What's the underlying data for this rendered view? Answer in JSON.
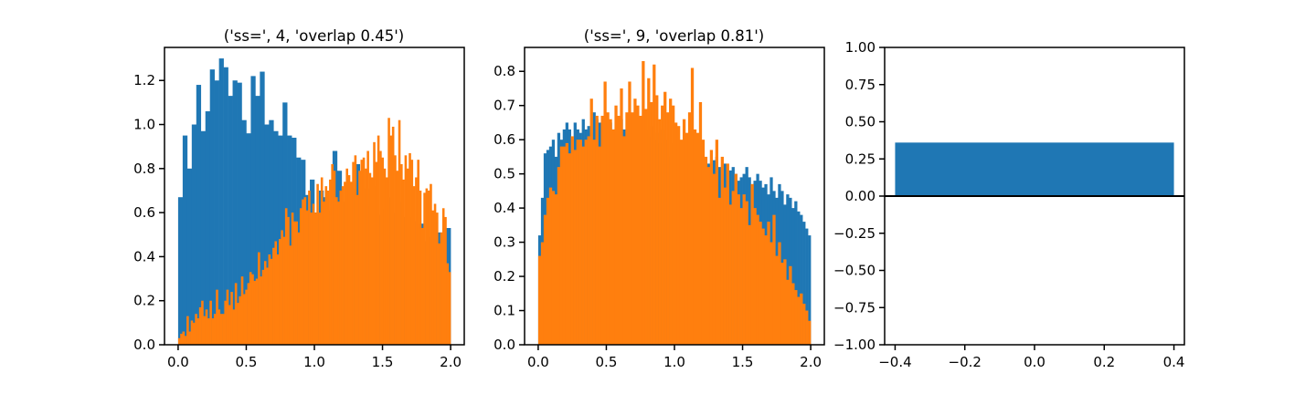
{
  "colors": {
    "blue": "#1f77b4",
    "orange": "#ff7f0e"
  },
  "chart_data": [
    {
      "type": "histogram",
      "title": "('ss=', 4, 'overlap 0.45')",
      "xlim": [
        -0.1,
        2.1
      ],
      "ylim": [
        0,
        1.35
      ],
      "xticks": [
        "0.0",
        "0.5",
        "1.0",
        "1.5",
        "2.0"
      ],
      "xtick_values": [
        0,
        0.5,
        1.0,
        1.5,
        2.0
      ],
      "yticks": [
        "0.0",
        "0.2",
        "0.4",
        "0.6",
        "0.8",
        "1.0",
        "1.2"
      ],
      "ytick_values": [
        0,
        0.2,
        0.4,
        0.6,
        0.8,
        1.0,
        1.2
      ],
      "bin_range": [
        0,
        2
      ],
      "series": [
        {
          "color": "blue",
          "values": [
            0.67,
            0.95,
            0.8,
            1.0,
            1.18,
            0.97,
            1.06,
            1.25,
            1.2,
            1.3,
            1.26,
            1.13,
            1.2,
            1.19,
            1.02,
            0.96,
            1.22,
            1.13,
            1.24,
            1.0,
            1.02,
            0.97,
            0.95,
            1.1,
            0.95,
            0.94,
            0.85,
            0.84,
            0.68,
            0.75,
            0.6,
            0.7,
            0.67,
            0.61,
            0.88,
            0.79,
            0.65,
            0.69,
            0.71,
            0.82,
            0.57,
            0.71,
            0.63,
            0.72,
            0.59,
            0.62,
            0.67,
            0.6,
            0.65,
            0.58,
            0.63,
            0.58,
            0.56,
            0.55,
            0.47,
            0.49,
            0.56,
            0.51,
            0.5,
            0.53
          ]
        },
        {
          "color": "orange",
          "values": [
            0.03,
            0.05,
            0.06,
            0.04,
            0.13,
            0.06,
            0.11,
            0.1,
            0.14,
            0.12,
            0.17,
            0.2,
            0.13,
            0.16,
            0.12,
            0.2,
            0.12,
            0.14,
            0.25,
            0.16,
            0.14,
            0.14,
            0.2,
            0.25,
            0.18,
            0.24,
            0.16,
            0.28,
            0.19,
            0.22,
            0.31,
            0.23,
            0.25,
            0.28,
            0.33,
            0.32,
            0.29,
            0.3,
            0.42,
            0.31,
            0.34,
            0.38,
            0.35,
            0.41,
            0.39,
            0.44,
            0.47,
            0.41,
            0.48,
            0.52,
            0.49,
            0.62,
            0.58,
            0.45,
            0.6,
            0.56,
            0.56,
            0.51,
            0.62,
            0.66,
            0.67,
            0.61,
            0.7,
            0.6,
            0.64,
            0.6,
            0.73,
            0.6,
            0.76,
            0.65,
            0.72,
            0.7,
            0.75,
            0.82,
            0.79,
            0.67,
            0.65,
            0.7,
            0.72,
            0.74,
            0.8,
            0.77,
            0.74,
            0.83,
            0.86,
            0.68,
            0.79,
            0.84,
            0.85,
            0.8,
            0.88,
            0.78,
            0.76,
            0.92,
            0.83,
            0.95,
            0.88,
            0.85,
            0.8,
            0.76,
            1.03,
            0.95,
            0.99,
            0.86,
            0.79,
            1.02,
            0.82,
            0.75,
            0.86,
            0.8,
            0.87,
            0.84,
            0.72,
            0.76,
            0.84,
            0.7,
            0.53,
            0.69,
            0.71,
            0.7,
            0.73,
            0.61,
            0.64,
            0.6,
            0.46,
            0.51,
            0.62,
            0.58,
            0.37,
            0.33
          ]
        }
      ]
    },
    {
      "type": "histogram",
      "title": "('ss=', 9, 'overlap 0.81')",
      "xlim": [
        -0.1,
        2.1
      ],
      "ylim": [
        0,
        0.87
      ],
      "xticks": [
        "0.0",
        "0.5",
        "1.0",
        "1.5",
        "2.0"
      ],
      "xtick_values": [
        0,
        0.5,
        1.0,
        1.5,
        2.0
      ],
      "yticks": [
        "0.0",
        "0.1",
        "0.2",
        "0.3",
        "0.4",
        "0.5",
        "0.6",
        "0.7",
        "0.8"
      ],
      "ytick_values": [
        0,
        0.1,
        0.2,
        0.3,
        0.4,
        0.5,
        0.6,
        0.7,
        0.8
      ],
      "bin_range": [
        0,
        2
      ],
      "series": [
        {
          "color": "blue",
          "values": [
            0.32,
            0.43,
            0.56,
            0.57,
            0.58,
            0.6,
            0.55,
            0.62,
            0.6,
            0.63,
            0.65,
            0.63,
            0.6,
            0.65,
            0.63,
            0.62,
            0.66,
            0.63,
            0.64,
            0.62,
            0.68,
            0.66,
            0.65,
            0.65,
            0.67,
            0.64,
            0.65,
            0.63,
            0.62,
            0.64,
            0.66,
            0.63,
            0.62,
            0.65,
            0.62,
            0.64,
            0.63,
            0.66,
            0.62,
            0.63,
            0.61,
            0.64,
            0.6,
            0.62,
            0.59,
            0.63,
            0.6,
            0.6,
            0.55,
            0.59,
            0.58,
            0.56,
            0.58,
            0.56,
            0.52,
            0.54,
            0.56,
            0.52,
            0.55,
            0.53,
            0.55,
            0.51,
            0.53,
            0.49,
            0.54,
            0.55,
            0.52,
            0.5,
            0.53,
            0.48,
            0.51,
            0.52,
            0.5,
            0.48,
            0.49,
            0.5,
            0.52,
            0.49,
            0.47,
            0.48,
            0.5,
            0.48,
            0.46,
            0.47,
            0.44,
            0.49,
            0.45,
            0.43,
            0.47,
            0.45,
            0.41,
            0.44,
            0.43,
            0.4,
            0.42,
            0.39,
            0.38,
            0.36,
            0.34,
            0.32
          ]
        },
        {
          "color": "orange",
          "values": [
            0.26,
            0.3,
            0.38,
            0.43,
            0.46,
            0.45,
            0.44,
            0.52,
            0.58,
            0.58,
            0.59,
            0.56,
            0.61,
            0.57,
            0.6,
            0.6,
            0.58,
            0.6,
            0.61,
            0.72,
            0.6,
            0.67,
            0.58,
            0.67,
            0.77,
            0.68,
            0.66,
            0.63,
            0.7,
            0.67,
            0.75,
            0.61,
            0.68,
            0.77,
            0.68,
            0.72,
            0.7,
            0.67,
            0.83,
            0.69,
            0.78,
            0.71,
            0.82,
            0.73,
            0.66,
            0.7,
            0.74,
            0.68,
            0.72,
            0.7,
            0.65,
            0.64,
            0.6,
            0.66,
            0.62,
            0.68,
            0.81,
            0.63,
            0.62,
            0.71,
            0.6,
            0.55,
            0.52,
            0.57,
            0.5,
            0.6,
            0.43,
            0.55,
            0.46,
            0.53,
            0.41,
            0.45,
            0.5,
            0.44,
            0.4,
            0.44,
            0.42,
            0.35,
            0.47,
            0.4,
            0.38,
            0.36,
            0.34,
            0.32,
            0.36,
            0.3,
            0.38,
            0.26,
            0.3,
            0.24,
            0.25,
            0.19,
            0.23,
            0.18,
            0.16,
            0.14,
            0.15,
            0.12,
            0.1,
            0.07
          ]
        }
      ]
    },
    {
      "type": "bar",
      "title": "",
      "xlim": [
        -0.43,
        0.43
      ],
      "ylim": [
        -1.0,
        1.0
      ],
      "xticks": [
        "−0.4",
        "−0.2",
        "0.0",
        "0.2",
        "0.4"
      ],
      "xtick_values": [
        -0.4,
        -0.2,
        0,
        0.2,
        0.4
      ],
      "yticks": [
        "−1.00",
        "−0.75",
        "−0.50",
        "−0.25",
        "0.00",
        "0.25",
        "0.50",
        "0.75",
        "1.00"
      ],
      "ytick_values": [
        -1.0,
        -0.75,
        -0.5,
        -0.25,
        0,
        0.25,
        0.5,
        0.75,
        1.0
      ],
      "categories": [
        0
      ],
      "bar_width": 0.8,
      "values": [
        0.36
      ],
      "color": "blue",
      "hline": 0
    }
  ]
}
